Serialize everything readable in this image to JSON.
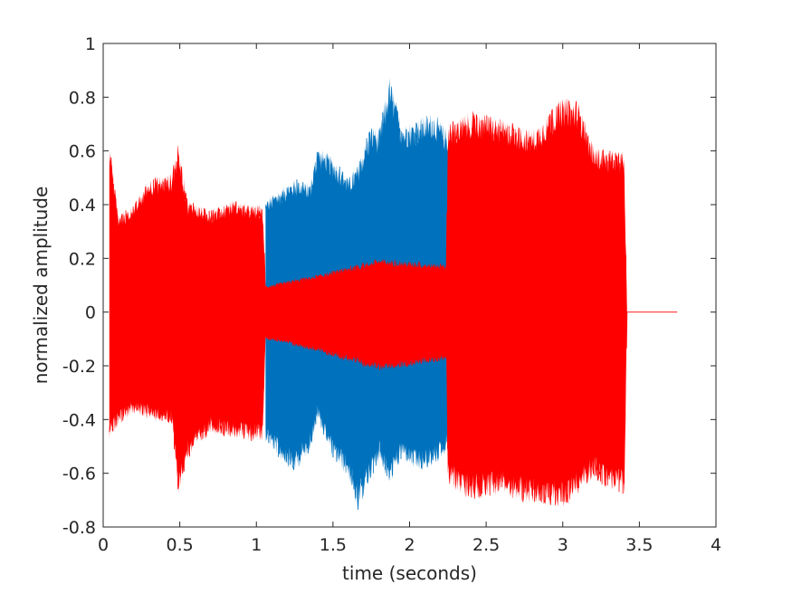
{
  "chart_data": {
    "type": "line",
    "title": "",
    "xlabel": "time (seconds)",
    "ylabel": "normalized amplitude",
    "xlim": [
      0,
      4
    ],
    "ylim": [
      -0.8,
      1
    ],
    "xticks": [
      0,
      0.5,
      1,
      1.5,
      2,
      2.5,
      3,
      3.5,
      4
    ],
    "xtick_labels": [
      "0",
      "0.5",
      "1",
      "1.5",
      "2",
      "2.5",
      "3",
      "3.5",
      "4"
    ],
    "yticks": [
      -0.8,
      -0.6,
      -0.4,
      -0.2,
      0,
      0.2,
      0.4,
      0.6,
      0.8,
      1
    ],
    "ytick_labels": [
      "-0.8",
      "-0.6",
      "-0.4",
      "-0.2",
      "0",
      "0.2",
      "0.4",
      "0.6",
      "0.8",
      "1"
    ],
    "grid": false,
    "legend": "none",
    "colors": {
      "blue": "#0072BD",
      "red": "#FF0000"
    },
    "series": [
      {
        "color": "#0072BD",
        "description_values": "envelope (time s, max amplitude, min amplitude)",
        "envelope": [
          [
            1.06,
            0.42,
            -0.48
          ],
          [
            1.15,
            0.46,
            -0.55
          ],
          [
            1.25,
            0.5,
            -0.6
          ],
          [
            1.35,
            0.48,
            -0.52
          ],
          [
            1.4,
            0.62,
            -0.4
          ],
          [
            1.5,
            0.58,
            -0.55
          ],
          [
            1.6,
            0.5,
            -0.62
          ],
          [
            1.66,
            0.55,
            -0.75
          ],
          [
            1.75,
            0.7,
            -0.62
          ],
          [
            1.8,
            0.68,
            -0.55
          ],
          [
            1.87,
            0.88,
            -0.65
          ],
          [
            1.95,
            0.7,
            -0.55
          ],
          [
            2.05,
            0.72,
            -0.6
          ],
          [
            2.15,
            0.75,
            -0.58
          ],
          [
            2.25,
            0.68,
            -0.52
          ]
        ]
      },
      {
        "color": "#FF0000",
        "description_values": "envelope (time s, max amplitude, min amplitude)",
        "envelope": [
          [
            0.04,
            0.64,
            -0.48
          ],
          [
            0.1,
            0.36,
            -0.42
          ],
          [
            0.2,
            0.4,
            -0.38
          ],
          [
            0.3,
            0.5,
            -0.4
          ],
          [
            0.45,
            0.52,
            -0.42
          ],
          [
            0.49,
            0.63,
            -0.68
          ],
          [
            0.55,
            0.42,
            -0.55
          ],
          [
            0.7,
            0.38,
            -0.45
          ],
          [
            0.85,
            0.42,
            -0.47
          ],
          [
            0.95,
            0.4,
            -0.48
          ],
          [
            1.04,
            0.4,
            -0.48
          ],
          [
            1.06,
            0.1,
            -0.1
          ],
          [
            1.4,
            0.14,
            -0.15
          ],
          [
            1.8,
            0.2,
            -0.22
          ],
          [
            2.24,
            0.18,
            -0.18
          ],
          [
            2.25,
            0.7,
            -0.65
          ],
          [
            2.4,
            0.75,
            -0.7
          ],
          [
            2.6,
            0.72,
            -0.68
          ],
          [
            2.8,
            0.68,
            -0.72
          ],
          [
            3.0,
            0.8,
            -0.73
          ],
          [
            3.1,
            0.79,
            -0.68
          ],
          [
            3.2,
            0.62,
            -0.62
          ],
          [
            3.3,
            0.6,
            -0.66
          ],
          [
            3.4,
            0.6,
            -0.68
          ],
          [
            3.42,
            0.0,
            0.0
          ],
          [
            3.75,
            0.0,
            0.0
          ]
        ]
      }
    ]
  }
}
